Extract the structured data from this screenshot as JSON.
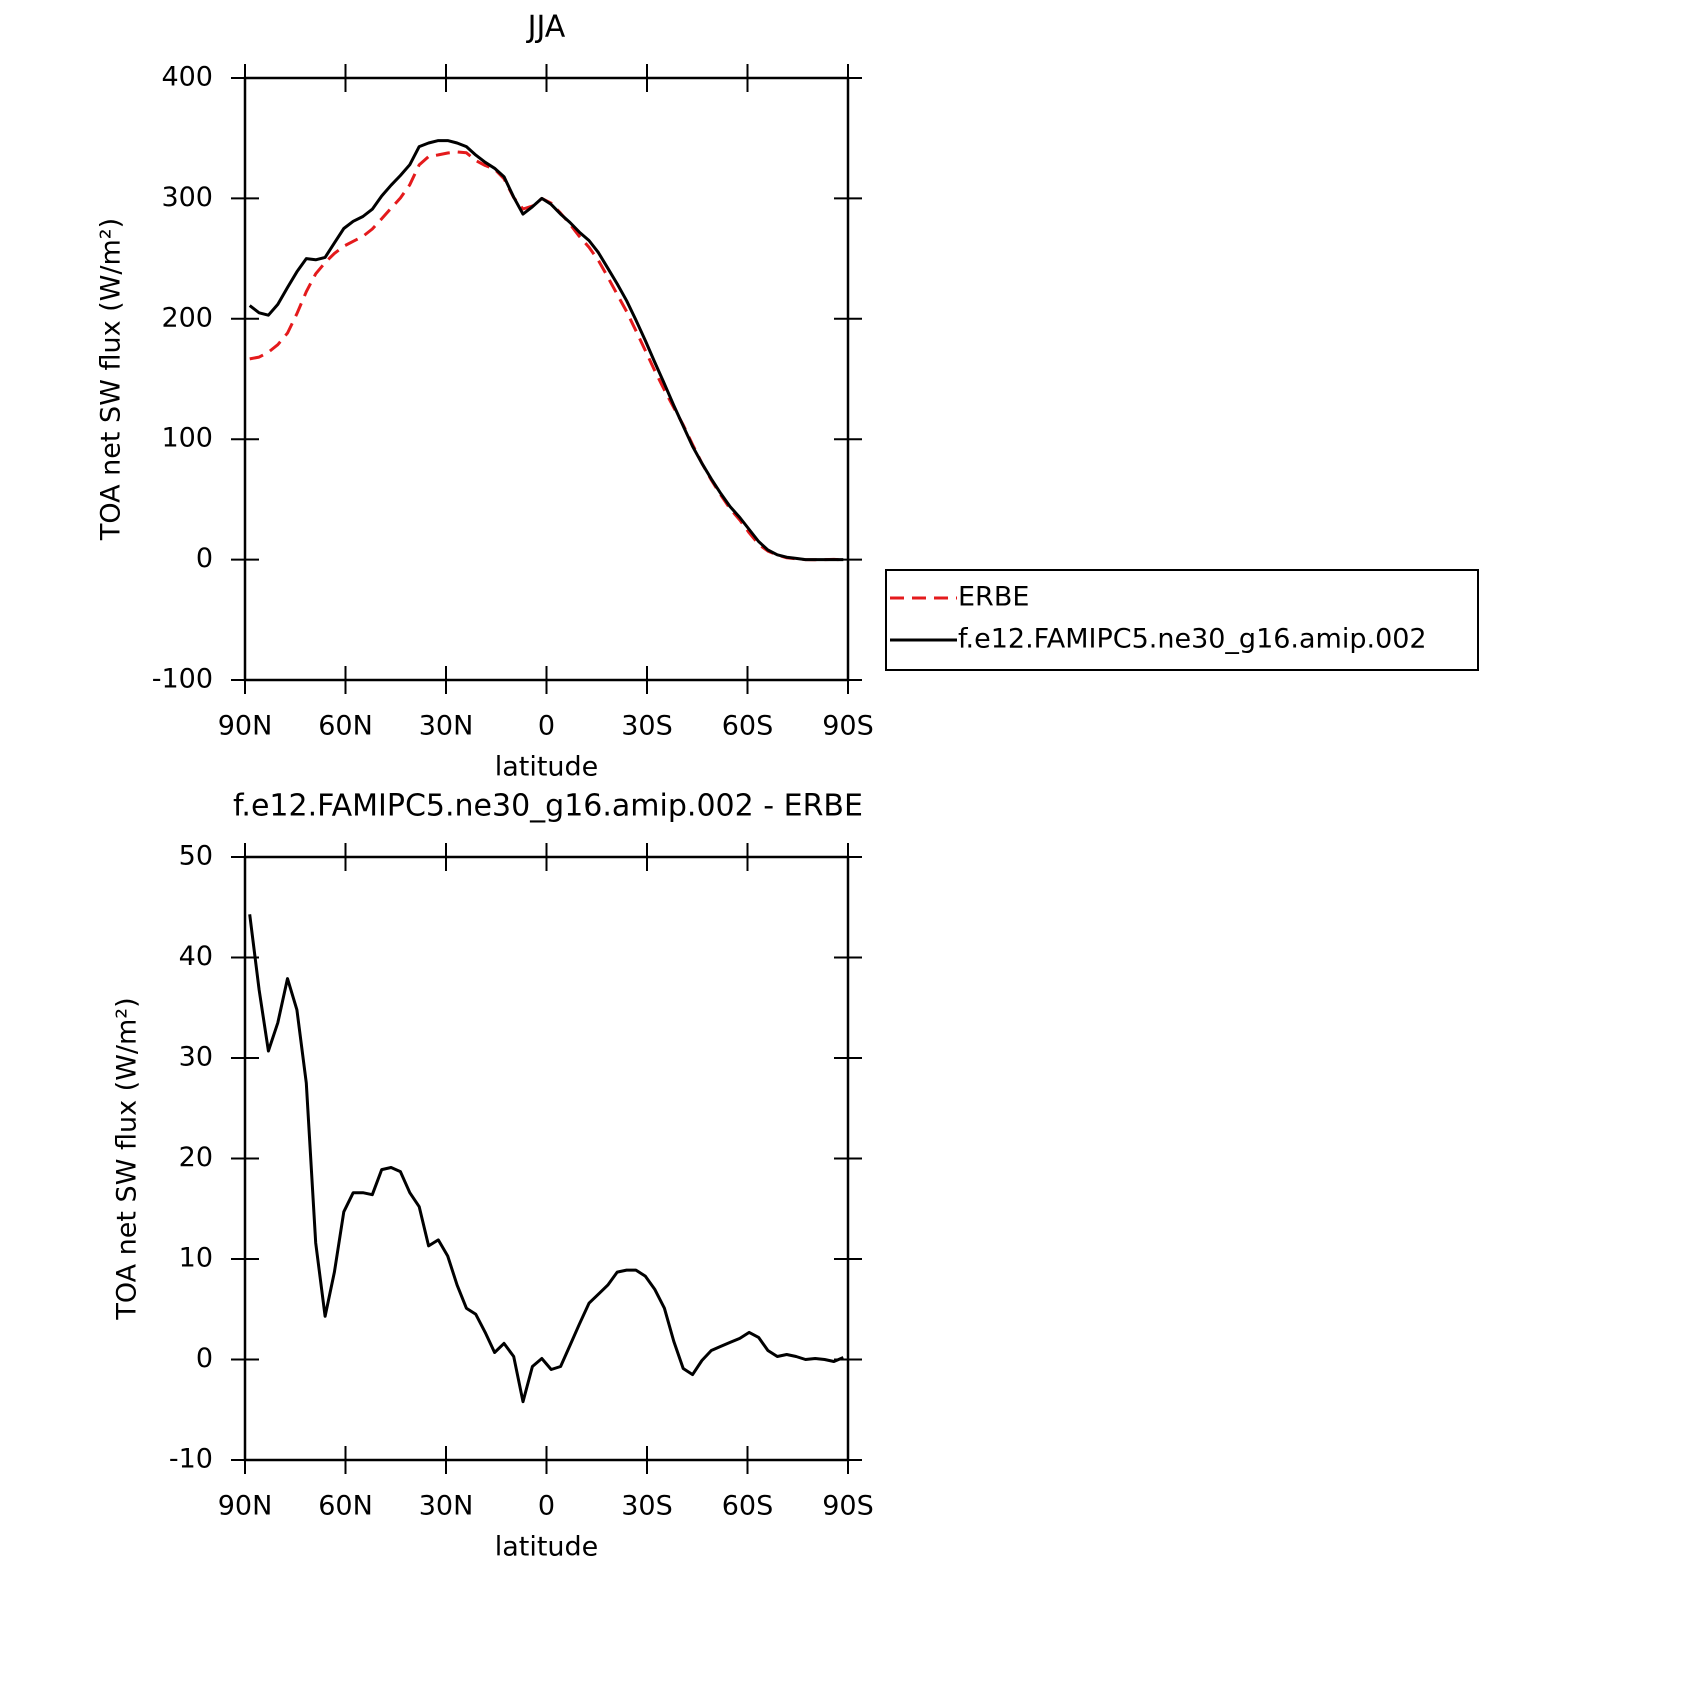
{
  "chart_data": [
    {
      "type": "line",
      "title": "JJA",
      "xlabel": "latitude",
      "ylabel": "TOA net SW flux (W/m²)",
      "xlim": [
        90,
        -90
      ],
      "ylim": [
        -100,
        400
      ],
      "xticks": [
        {
          "value": 90,
          "label": "90N"
        },
        {
          "value": 60,
          "label": "60N"
        },
        {
          "value": 30,
          "label": "30N"
        },
        0,
        {
          "value": -30,
          "label": "30S"
        },
        {
          "value": -60,
          "label": "60S"
        },
        {
          "value": -90,
          "label": "90S"
        }
      ],
      "yticks": [
        -100,
        0,
        100,
        200,
        300,
        400
      ],
      "legend": "right",
      "x": [
        88.6,
        85.8,
        83.0,
        80.2,
        77.3,
        74.5,
        71.7,
        68.9,
        66.1,
        63.3,
        60.5,
        57.7,
        54.8,
        52.0,
        49.2,
        46.4,
        43.6,
        40.8,
        38.0,
        35.2,
        32.3,
        29.5,
        26.7,
        23.9,
        21.1,
        18.3,
        15.5,
        12.7,
        9.8,
        7.0,
        4.2,
        1.4,
        -1.4,
        -4.2,
        -7.0,
        -9.8,
        -12.7,
        -15.5,
        -18.3,
        -21.1,
        -23.9,
        -26.7,
        -29.5,
        -32.3,
        -35.2,
        -38.0,
        -40.8,
        -43.6,
        -46.4,
        -49.2,
        -52.0,
        -54.8,
        -57.7,
        -60.5,
        -63.3,
        -66.1,
        -68.9,
        -71.7,
        -74.5,
        -77.3,
        -80.2,
        -83.0,
        -85.8,
        -88.6
      ],
      "series": [
        {
          "name": "ERBE",
          "color": "#e41a1c",
          "style": "dashed",
          "values": [
            166.7,
            168.2,
            172.3,
            178.5,
            188.1,
            204.2,
            222.5,
            237.4,
            246.7,
            254.3,
            260.3,
            264.4,
            268.4,
            274.6,
            283.1,
            291.9,
            300.3,
            311.4,
            327.8,
            334.7,
            336.1,
            337.7,
            338.6,
            337.9,
            331.5,
            327.3,
            324.3,
            316.4,
            300.7,
            291.2,
            293.7,
            299.9,
            296.0,
            287.7,
            278.6,
            268.5,
            259.4,
            248.5,
            234.6,
            220.3,
            206.1,
            190.1,
            173.7,
            157.0,
            140.9,
            126.2,
            111.9,
            95.5,
            80.1,
            66.1,
            53.7,
            42.3,
            32.9,
            22.3,
            12.8,
            7.1,
            3.7,
            1.5,
            0.7,
            0,
            -0.1,
            0,
            0.2,
            -0.2
          ]
        },
        {
          "name": "f.e12.FAMIPC5.ne30_g16.amip.002",
          "color": "#000000",
          "style": "solid",
          "values": [
            211,
            205,
            203,
            212,
            226,
            239,
            250,
            249,
            251,
            263,
            275,
            281,
            285,
            291,
            302,
            311,
            319,
            328,
            343,
            346,
            348,
            348,
            346,
            343,
            336,
            330,
            325,
            318,
            301,
            287,
            293,
            300,
            295,
            287,
            280,
            272,
            265,
            255,
            242,
            229,
            215,
            199,
            182,
            164,
            146,
            128,
            111,
            94,
            80,
            67,
            55,
            44,
            35,
            25,
            15,
            8,
            4,
            2,
            1,
            0,
            0,
            0,
            0,
            0
          ]
        }
      ]
    },
    {
      "type": "line",
      "title": "f.e12.FAMIPC5.ne30_g16.amip.002 - ERBE",
      "xlabel": "latitude",
      "ylabel": "TOA net SW flux (W/m²)",
      "xlim": [
        90,
        -90
      ],
      "ylim": [
        -10,
        50
      ],
      "xticks": [
        {
          "value": 90,
          "label": "90N"
        },
        {
          "value": 60,
          "label": "60N"
        },
        {
          "value": 30,
          "label": "30N"
        },
        0,
        {
          "value": -30,
          "label": "30S"
        },
        {
          "value": -60,
          "label": "60S"
        },
        {
          "value": -90,
          "label": "90S"
        }
      ],
      "yticks": [
        -10,
        0,
        10,
        20,
        30,
        40,
        50
      ],
      "x": [
        88.6,
        85.8,
        83.0,
        80.2,
        77.3,
        74.5,
        71.7,
        68.9,
        66.1,
        63.3,
        60.5,
        57.7,
        54.8,
        52.0,
        49.2,
        46.4,
        43.6,
        40.8,
        38.0,
        35.2,
        32.3,
        29.5,
        26.7,
        23.9,
        21.1,
        18.3,
        15.5,
        12.7,
        9.8,
        7.0,
        4.2,
        1.4,
        -1.4,
        -4.2,
        -7.0,
        -9.8,
        -12.7,
        -15.5,
        -18.3,
        -21.1,
        -23.9,
        -26.7,
        -29.5,
        -32.3,
        -35.2,
        -38.0,
        -40.8,
        -43.6,
        -46.4,
        -49.2,
        -52.0,
        -54.8,
        -57.7,
        -60.5,
        -63.3,
        -66.1,
        -68.9,
        -71.7,
        -74.5,
        -77.3,
        -80.2,
        -83.0,
        -85.8,
        -88.6
      ],
      "series": [
        {
          "color": "#000000",
          "style": "solid",
          "values": [
            44.3,
            36.8,
            30.7,
            33.5,
            37.9,
            34.8,
            27.5,
            11.6,
            4.3,
            8.7,
            14.7,
            16.6,
            16.6,
            16.4,
            18.9,
            19.1,
            18.7,
            16.6,
            15.2,
            11.3,
            11.9,
            10.3,
            7.4,
            5.1,
            4.5,
            2.7,
            0.7,
            1.6,
            0.3,
            -4.2,
            -0.7,
            0.1,
            -1.0,
            -0.7,
            1.4,
            3.5,
            5.6,
            6.5,
            7.4,
            8.7,
            8.9,
            8.9,
            8.3,
            7.0,
            5.1,
            1.8,
            -0.9,
            -1.5,
            -0.1,
            0.9,
            1.3,
            1.7,
            2.1,
            2.7,
            2.2,
            0.9,
            0.3,
            0.5,
            0.3,
            0.0,
            0.1,
            0.0,
            -0.2,
            0.2
          ]
        }
      ]
    }
  ]
}
